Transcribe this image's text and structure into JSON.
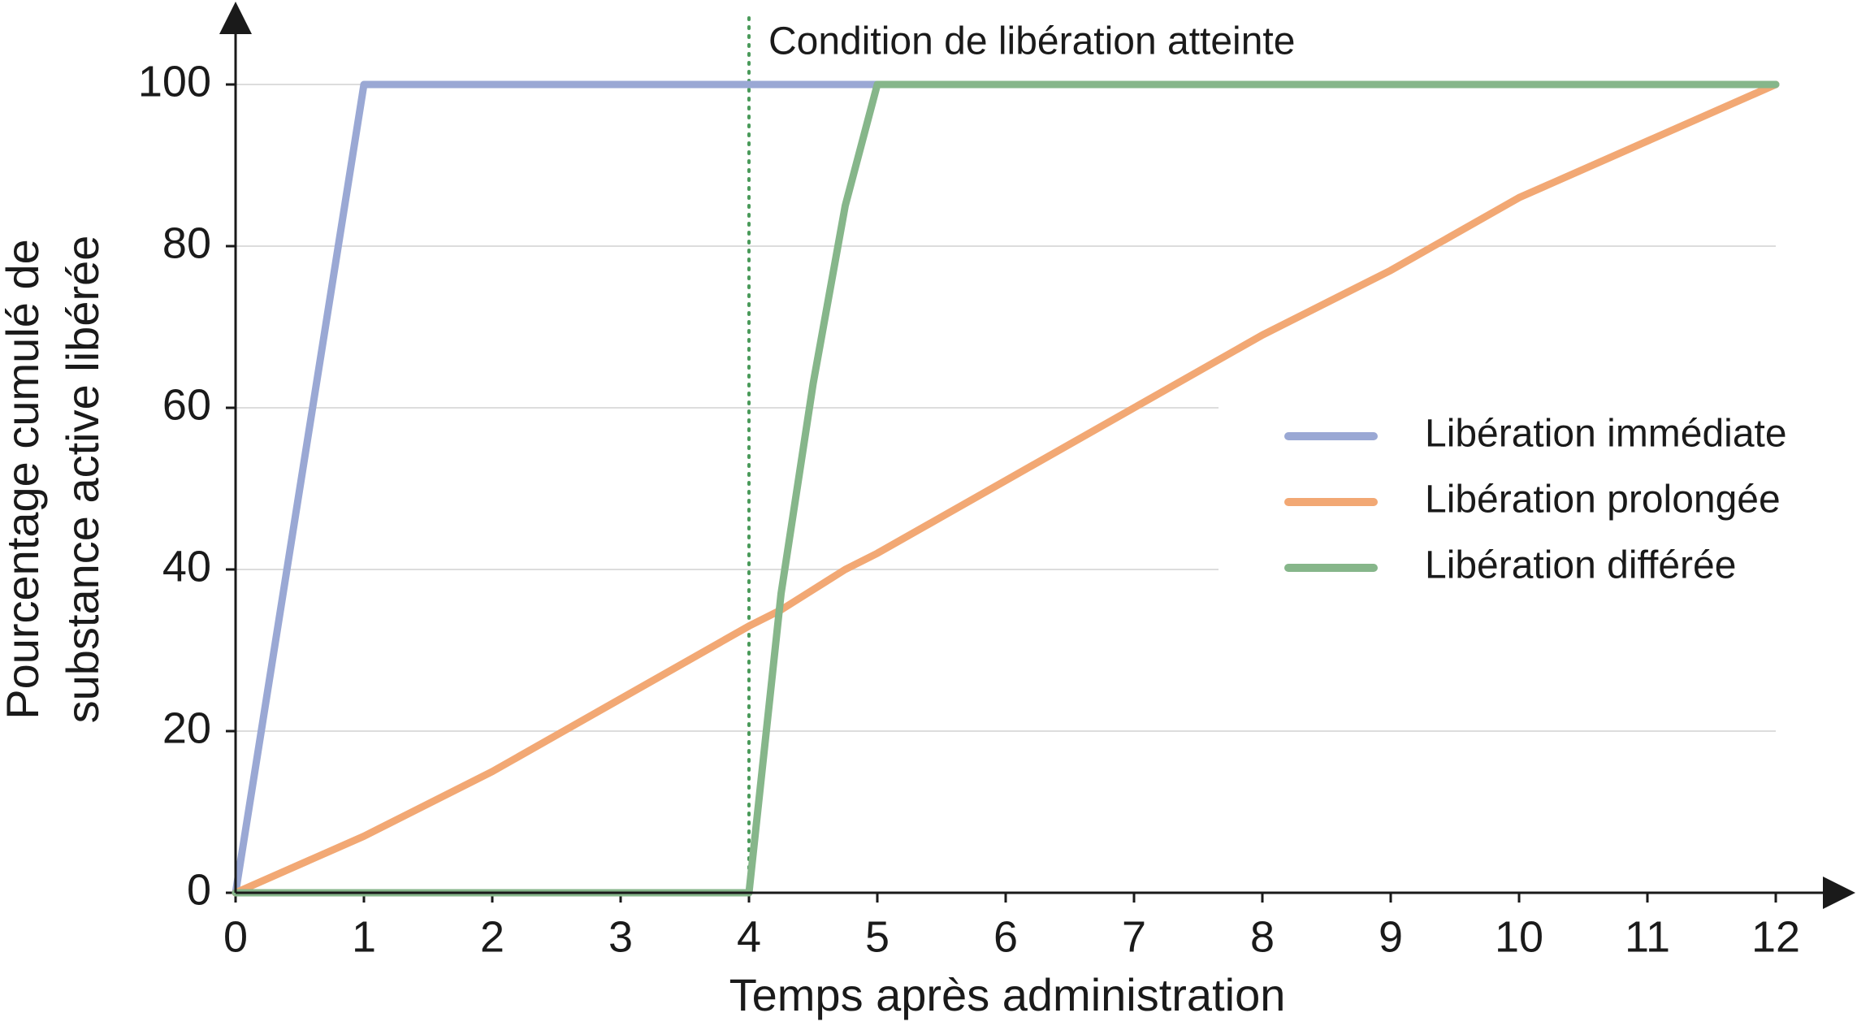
{
  "chart_data": {
    "type": "line",
    "x_label": "Temps après administration",
    "y_label": [
      "Pourcentage cumulé de",
      "substance active libérée"
    ],
    "x": [
      0,
      1,
      2,
      3,
      4,
      4.25,
      4.5,
      4.75,
      5,
      6,
      7,
      8,
      9,
      10,
      11,
      12
    ],
    "series": [
      {
        "name": "Libération immédiate",
        "color": "#9aa8d4",
        "values": [
          0,
          100,
          100,
          100,
          100,
          100,
          100,
          100,
          100,
          100,
          100,
          100,
          100,
          100,
          100,
          100
        ]
      },
      {
        "name": "Libération prolongée",
        "color": "#f2a874",
        "values": [
          0,
          7,
          15,
          24,
          33,
          35,
          37.5,
          40,
          42,
          51,
          60,
          69,
          77,
          86,
          93,
          100
        ]
      },
      {
        "name": "Libération différée",
        "color": "#86b68a",
        "values": [
          0,
          0,
          0,
          0,
          0,
          37,
          63,
          85,
          100,
          100,
          100,
          100,
          100,
          100,
          100,
          100
        ]
      }
    ],
    "xlim": [
      0,
      12
    ],
    "xticks": [
      0,
      1,
      2,
      3,
      4,
      5,
      6,
      7,
      8,
      9,
      10,
      11,
      12
    ],
    "ylim": [
      0,
      100
    ],
    "yticks": [
      0,
      20,
      40,
      60,
      80,
      100
    ],
    "grid": true,
    "legend": "right",
    "vline": {
      "x": 4,
      "label": "Condition de libération atteinte",
      "color": "#4a9a5a"
    }
  }
}
